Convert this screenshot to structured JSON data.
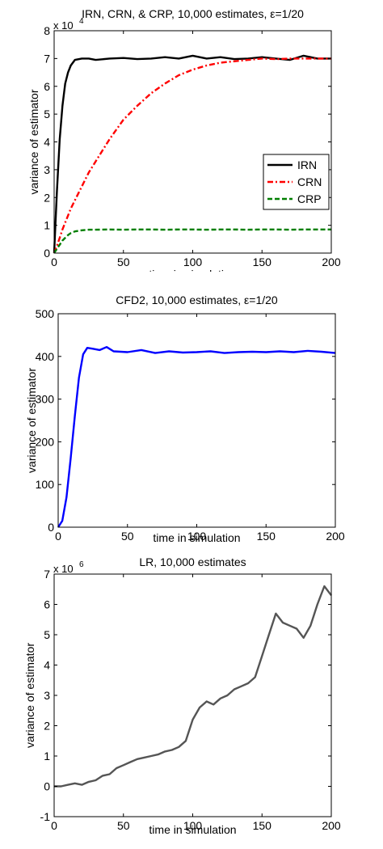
{
  "chart_data": [
    {
      "type": "line",
      "title": "IRN, CRN, & CRP, 10,000 estimates, ε=1/20",
      "xlabel": "time in simulation",
      "ylabel": "variance of estimator",
      "multiplier": "x 10",
      "multiplier_exp": "4",
      "xlim": [
        0,
        200
      ],
      "ylim": [
        0,
        8
      ],
      "xticks": [
        0,
        50,
        100,
        150,
        200
      ],
      "yticks": [
        0,
        1,
        2,
        3,
        4,
        5,
        6,
        7,
        8
      ],
      "grid": false,
      "legend": "center-right",
      "x": [
        0,
        2,
        4,
        6,
        8,
        10,
        12,
        15,
        20,
        25,
        30,
        40,
        50,
        60,
        70,
        80,
        90,
        100,
        110,
        120,
        130,
        140,
        150,
        160,
        170,
        180,
        190,
        200
      ],
      "series": [
        {
          "name": "IRN",
          "color": "#000000",
          "dash": "solid",
          "values": [
            0,
            2.2,
            4.1,
            5.3,
            6.1,
            6.5,
            6.75,
            6.95,
            7.0,
            7.0,
            6.95,
            7.0,
            7.02,
            6.98,
            7.0,
            7.05,
            7.0,
            7.1,
            7.0,
            7.05,
            6.98,
            7.0,
            7.05,
            7.0,
            6.95,
            7.1,
            7.0,
            7.0
          ]
        },
        {
          "name": "CRN",
          "color": "#ff0000",
          "dash": "dashdot",
          "values": [
            0,
            0.25,
            0.55,
            0.85,
            1.1,
            1.35,
            1.6,
            1.9,
            2.4,
            2.9,
            3.3,
            4.1,
            4.8,
            5.3,
            5.75,
            6.1,
            6.4,
            6.6,
            6.75,
            6.85,
            6.9,
            6.95,
            7.0,
            6.98,
            7.0,
            7.0,
            7.0,
            7.0
          ]
        },
        {
          "name": "CRP",
          "color": "#007f00",
          "dash": "dashed",
          "values": [
            0,
            0.15,
            0.3,
            0.45,
            0.55,
            0.65,
            0.72,
            0.78,
            0.82,
            0.84,
            0.84,
            0.85,
            0.84,
            0.85,
            0.85,
            0.84,
            0.85,
            0.85,
            0.84,
            0.85,
            0.85,
            0.84,
            0.85,
            0.85,
            0.84,
            0.85,
            0.85,
            0.85
          ]
        }
      ]
    },
    {
      "type": "line",
      "title": "CFD2, 10,000 estimates, ε=1/20",
      "xlabel": "time in simulation",
      "ylabel": "variance of estimator",
      "xlim": [
        0,
        200
      ],
      "ylim": [
        0,
        500
      ],
      "xticks": [
        0,
        50,
        100,
        150,
        200
      ],
      "yticks": [
        0,
        100,
        200,
        300,
        400,
        500
      ],
      "grid": false,
      "x": [
        0,
        3,
        6,
        9,
        12,
        15,
        18,
        21,
        25,
        30,
        35,
        40,
        50,
        60,
        70,
        80,
        90,
        100,
        110,
        120,
        130,
        140,
        150,
        160,
        170,
        180,
        190,
        200
      ],
      "series": [
        {
          "color": "#0000ff",
          "values": [
            0,
            15,
            70,
            160,
            260,
            350,
            405,
            420,
            418,
            415,
            422,
            412,
            410,
            415,
            408,
            412,
            409,
            410,
            412,
            408,
            410,
            411,
            410,
            412,
            410,
            413,
            411,
            408
          ]
        }
      ]
    },
    {
      "type": "line",
      "title": "LR, 10,000 estimates",
      "xlabel": "time in simulation",
      "ylabel": "variance of estimator",
      "multiplier": "x 10",
      "multiplier_exp": "6",
      "xlim": [
        0,
        200
      ],
      "ylim": [
        -1,
        7
      ],
      "xticks": [
        0,
        50,
        100,
        150,
        200
      ],
      "yticks": [
        -1,
        0,
        1,
        2,
        3,
        4,
        5,
        6,
        7
      ],
      "grid": false,
      "x": [
        0,
        5,
        10,
        15,
        20,
        25,
        30,
        35,
        40,
        45,
        50,
        55,
        60,
        65,
        70,
        75,
        80,
        85,
        90,
        95,
        100,
        105,
        110,
        115,
        120,
        125,
        130,
        135,
        140,
        145,
        150,
        155,
        160,
        165,
        170,
        175,
        180,
        185,
        190,
        195,
        200
      ],
      "series": [
        {
          "color": "#555555",
          "values": [
            0,
            0.0,
            0.05,
            0.1,
            0.05,
            0.15,
            0.2,
            0.35,
            0.4,
            0.6,
            0.7,
            0.8,
            0.9,
            0.95,
            1.0,
            1.05,
            1.15,
            1.2,
            1.3,
            1.5,
            2.2,
            2.6,
            2.8,
            2.7,
            2.9,
            3.0,
            3.2,
            3.3,
            3.4,
            3.6,
            4.3,
            5.0,
            5.7,
            5.4,
            5.3,
            5.2,
            4.9,
            5.3,
            6.0,
            6.6,
            6.3
          ]
        }
      ]
    }
  ]
}
